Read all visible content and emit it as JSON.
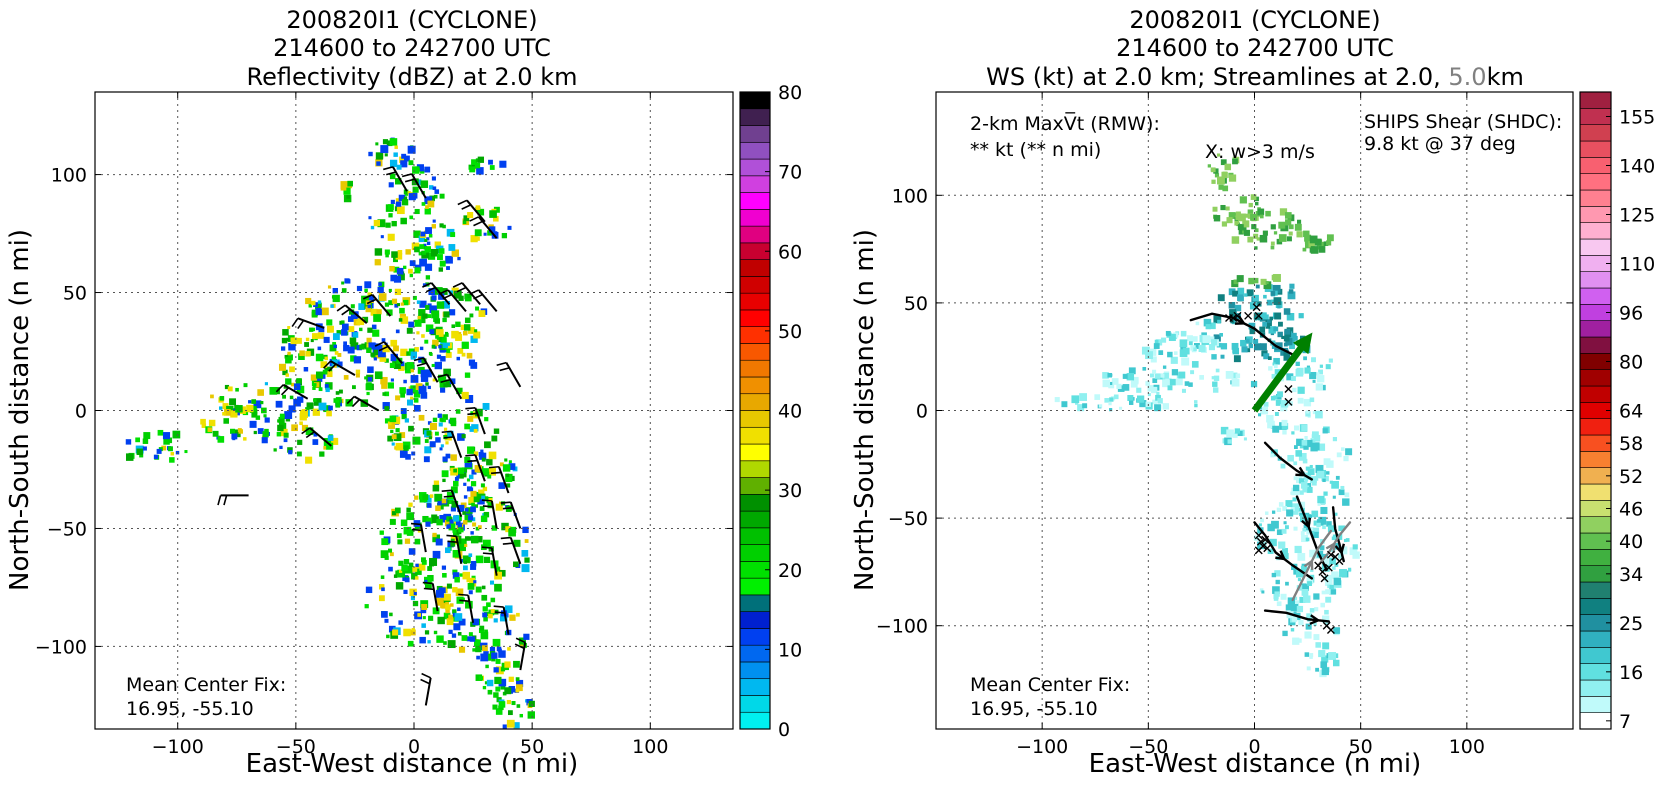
{
  "chart_data": [
    {
      "type": "heatmap",
      "title": [
        "200820I1 (CYCLONE)",
        "214600 to 242700 UTC",
        "Reflectivity (dBZ) at 2.0 km"
      ],
      "xlabel": "East-West distance (n mi)",
      "ylabel": "North-South distance (n mi)",
      "xlim": [
        -135,
        135
      ],
      "ylim": [
        -135,
        135
      ],
      "xticks": [
        -100,
        -50,
        0,
        50,
        100
      ],
      "yticks": [
        -100,
        -50,
        0,
        50,
        100
      ],
      "grid": true,
      "annotation": [
        "Mean Center Fix:",
        "16.95, -55.10"
      ],
      "colorbar": {
        "ticks": [
          0,
          10,
          20,
          30,
          40,
          50,
          60,
          70,
          80
        ],
        "range": [
          0,
          80
        ],
        "colors": [
          "#00f0f0",
          "#00d8e8",
          "#00b8f0",
          "#0090f0",
          "#0068f0",
          "#0040f0",
          "#0020d0",
          "#00707a",
          "#00f000",
          "#00e000",
          "#00d000",
          "#00c000",
          "#00a800",
          "#009000",
          "#60b000",
          "#b0d800",
          "#ffff00",
          "#f0e000",
          "#e8c800",
          "#e8a800",
          "#f09000",
          "#f07800",
          "#f85800",
          "#ff3000",
          "#ff0000",
          "#e80000",
          "#d00000",
          "#c00000",
          "#c80030",
          "#e00080",
          "#f000d0",
          "#ff00ff",
          "#d040e0",
          "#b050d8",
          "#9050c0",
          "#704090",
          "#402050",
          "#000000"
        ]
      },
      "wind_barbs": [
        {
          "x": -70,
          "y": -36,
          "dir": 270
        },
        {
          "x": -45,
          "y": 5,
          "dir": 300
        },
        {
          "x": -35,
          "y": -15,
          "dir": 310
        },
        {
          "x": -38,
          "y": 35,
          "dir": 290
        },
        {
          "x": -25,
          "y": 15,
          "dir": 300
        },
        {
          "x": -20,
          "y": 37,
          "dir": 310
        },
        {
          "x": -10,
          "y": 40,
          "dir": 320
        },
        {
          "x": -3,
          "y": 93,
          "dir": 330
        },
        {
          "x": 5,
          "y": 90,
          "dir": 330
        },
        {
          "x": 30,
          "y": 80,
          "dir": 320
        },
        {
          "x": 35,
          "y": 73,
          "dir": 320
        },
        {
          "x": 15,
          "y": 45,
          "dir": 320
        },
        {
          "x": 22,
          "y": 42,
          "dir": 320
        },
        {
          "x": 28,
          "y": 45,
          "dir": 320
        },
        {
          "x": 35,
          "y": 42,
          "dir": 320
        },
        {
          "x": -5,
          "y": 20,
          "dir": 320
        },
        {
          "x": 10,
          "y": 12,
          "dir": 330
        },
        {
          "x": 20,
          "y": 5,
          "dir": 330
        },
        {
          "x": 20,
          "y": -20,
          "dir": 340
        },
        {
          "x": 30,
          "y": -30,
          "dir": 340
        },
        {
          "x": 40,
          "y": -35,
          "dir": 340
        },
        {
          "x": 20,
          "y": -45,
          "dir": 340
        },
        {
          "x": 35,
          "y": -50,
          "dir": 350
        },
        {
          "x": 45,
          "y": -50,
          "dir": 340
        },
        {
          "x": 5,
          "y": -60,
          "dir": 350
        },
        {
          "x": 20,
          "y": -65,
          "dir": 350
        },
        {
          "x": 35,
          "y": -70,
          "dir": 350
        },
        {
          "x": 45,
          "y": -65,
          "dir": 340
        },
        {
          "x": 10,
          "y": -85,
          "dir": 350
        },
        {
          "x": 25,
          "y": -90,
          "dir": 350
        },
        {
          "x": 40,
          "y": -95,
          "dir": 350
        },
        {
          "x": 45,
          "y": -110,
          "dir": 10
        },
        {
          "x": 5,
          "y": -125,
          "dir": 10
        },
        {
          "x": 45,
          "y": 10,
          "dir": 330
        },
        {
          "x": -15,
          "y": 0,
          "dir": 300
        },
        {
          "x": 30,
          "y": -10,
          "dir": 340
        }
      ]
    },
    {
      "type": "heatmap",
      "title": [
        "200820I1 (CYCLONE)",
        "214600 to 242700 UTC"
      ],
      "title_line3": {
        "prefix": "WS (kt) at 2.0 km; Streamlines at 2.0, ",
        "highlight": "5.0",
        "suffix": "km"
      },
      "highlight_color": "#808080",
      "xlabel": "East-West distance (n mi)",
      "ylabel": "North-South distance (n mi)",
      "xlim": [
        -150,
        150
      ],
      "ylim": [
        -148,
        148
      ],
      "xticks": [
        -100,
        -50,
        0,
        50,
        100
      ],
      "yticks": [
        -100,
        -50,
        0,
        50,
        100
      ],
      "grid": true,
      "annotation_top_left": [
        "2-km MaxV̅t (RMW):",
        "** kt (** n mi)"
      ],
      "annotation_mid": "X: w>3 m/s",
      "shear": {
        "label": [
          "SHIPS Shear (SHDC):",
          "9.8 kt @ 37 deg"
        ],
        "speed_kt": 9.8,
        "direction_deg": 37,
        "color": "#008000"
      },
      "annotation": [
        "Mean Center Fix:",
        "16.95, -55.10"
      ],
      "colorbar": {
        "ticks": [
          7,
          16,
          25,
          34,
          40,
          46,
          52,
          58,
          64,
          80,
          96,
          110,
          125,
          140,
          155
        ],
        "colors": [
          "#ffffff",
          "#c0fafa",
          "#90f0f0",
          "#60e0e0",
          "#40c8d0",
          "#30b0c0",
          "#2090a0",
          "#108080",
          "#208070",
          "#30a040",
          "#40b040",
          "#60c050",
          "#90d060",
          "#c8e070",
          "#f0e070",
          "#f0b050",
          "#f88030",
          "#f85020",
          "#f02010",
          "#e00000",
          "#c00000",
          "#a00000",
          "#800000",
          "#801040",
          "#a020a0",
          "#c040e0",
          "#d060f0",
          "#e090f0",
          "#f0b0f0",
          "#f8c8f0",
          "#ffb0d0",
          "#ff98b0",
          "#ff8090",
          "#ff7080",
          "#f86070",
          "#e85060",
          "#d04050",
          "#c03050",
          "#a02040"
        ]
      },
      "w_marks": [
        {
          "x": -12,
          "y": 43
        },
        {
          "x": -10,
          "y": 43
        },
        {
          "x": -8,
          "y": 44
        },
        {
          "x": -3,
          "y": 44
        },
        {
          "x": 1,
          "y": 48
        },
        {
          "x": 2,
          "y": 44
        },
        {
          "x": 16,
          "y": 10
        },
        {
          "x": 16,
          "y": 4
        },
        {
          "x": 2,
          "y": -58
        },
        {
          "x": 3,
          "y": -61
        },
        {
          "x": 4,
          "y": -63
        },
        {
          "x": 2,
          "y": -65
        },
        {
          "x": 5,
          "y": -60
        },
        {
          "x": 6,
          "y": -64
        },
        {
          "x": 30,
          "y": -72
        },
        {
          "x": 32,
          "y": -75
        },
        {
          "x": 35,
          "y": -73
        },
        {
          "x": 38,
          "y": -68
        },
        {
          "x": 40,
          "y": -70
        },
        {
          "x": 36,
          "y": -67
        },
        {
          "x": 33,
          "y": -78
        },
        {
          "x": 34,
          "y": -100
        },
        {
          "x": 36,
          "y": -102
        }
      ],
      "streamlines": [
        {
          "color": "#000000",
          "points": [
            [
              -30,
              42
            ],
            [
              -20,
              45
            ],
            [
              -10,
              43
            ],
            [
              0,
              38
            ],
            [
              10,
              30
            ],
            [
              20,
              25
            ]
          ],
          "arrow_at": 2
        },
        {
          "color": "#000000",
          "points": [
            [
              5,
              -15
            ],
            [
              12,
              -22
            ],
            [
              20,
              -28
            ],
            [
              27,
              -32
            ]
          ],
          "arrow_at": 2
        },
        {
          "color": "#000000",
          "points": [
            [
              0,
              -52
            ],
            [
              5,
              -58
            ],
            [
              10,
              -66
            ],
            [
              18,
              -72
            ],
            [
              27,
              -78
            ]
          ],
          "arrow_at": 2
        },
        {
          "color": "#000000",
          "points": [
            [
              20,
              -40
            ],
            [
              24,
              -50
            ],
            [
              27,
              -58
            ],
            [
              30,
              -66
            ],
            [
              34,
              -74
            ]
          ],
          "arrow_at": 1
        },
        {
          "color": "#000000",
          "points": [
            [
              37,
              -45
            ],
            [
              38,
              -55
            ],
            [
              40,
              -62
            ],
            [
              42,
              -70
            ]
          ],
          "arrow_at": 2
        },
        {
          "color": "#000000",
          "points": [
            [
              5,
              -93
            ],
            [
              15,
              -94
            ],
            [
              25,
              -97
            ],
            [
              35,
              -98
            ]
          ],
          "arrow_at": 2
        },
        {
          "color": "#808080",
          "points": [
            [
              18,
              -88
            ],
            [
              24,
              -76
            ],
            [
              30,
              -64
            ],
            [
              36,
              -56
            ]
          ],
          "arrow_at": 1
        },
        {
          "color": "#808080",
          "points": [
            [
              30,
              -72
            ],
            [
              35,
              -66
            ],
            [
              40,
              -58
            ],
            [
              45,
              -52
            ]
          ],
          "arrow_at": 1
        }
      ]
    }
  ]
}
